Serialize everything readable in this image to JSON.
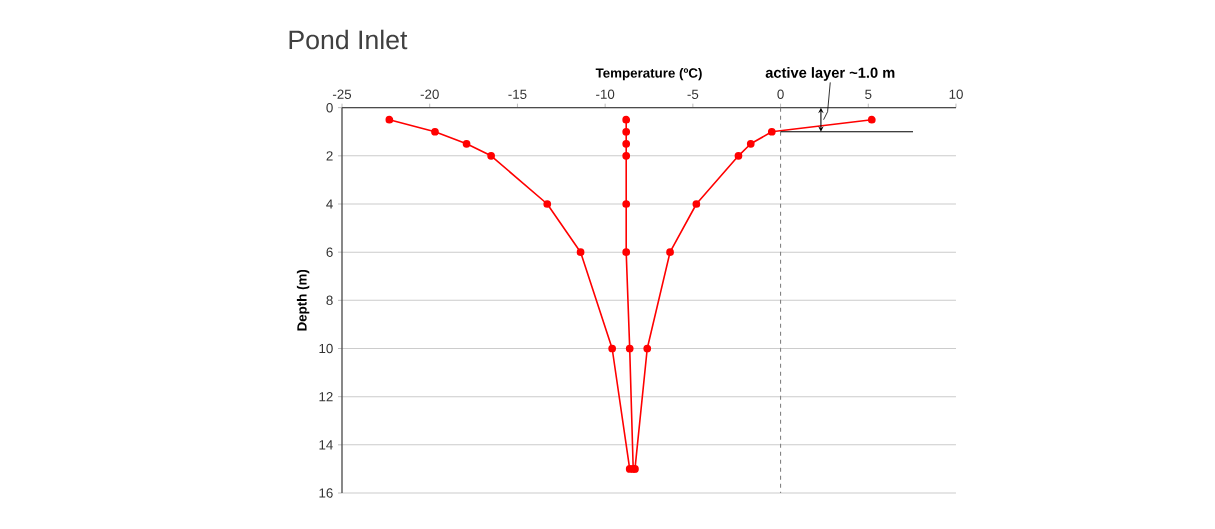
{
  "chart_data": {
    "type": "line",
    "title": "Pond Inlet",
    "xlabel": "Temperature (ºC)",
    "ylabel": "Depth (m)",
    "series": [
      {
        "color": "#ff0000",
        "x": [
          -22.3,
          -19.7,
          -17.9,
          -16.5,
          -13.3,
          -11.4,
          -9.6,
          -8.6
        ],
        "values": [
          0.5,
          1,
          1.5,
          2,
          4,
          6,
          10,
          15
        ]
      },
      {
        "color": "#ff0000",
        "x": [
          -8.8,
          -8.8,
          -8.8,
          -8.8,
          -8.8,
          -8.8,
          -8.6,
          -8.4
        ],
        "values": [
          0.5,
          1,
          1.5,
          2,
          4,
          6,
          10,
          15
        ]
      },
      {
        "color": "#ff0000",
        "x": [
          5.2,
          -0.5,
          -1.7,
          -2.4,
          -4.8,
          -6.3,
          -7.6,
          -8.3
        ],
        "values": [
          0.5,
          1,
          1.5,
          2,
          4,
          6,
          10,
          15
        ]
      }
    ],
    "xlim": [
      -25,
      10
    ],
    "xticks": [
      -25,
      -20,
      -15,
      -10,
      -5,
      0,
      5,
      10
    ],
    "ylim": [
      16,
      0
    ],
    "yticks": [
      0,
      2,
      4,
      6,
      8,
      10,
      12,
      14,
      16
    ],
    "grid": "y",
    "marker": "circle",
    "line_style": "solid",
    "ref_lines": [
      {
        "axis": "x",
        "value": 0,
        "color": "#808080",
        "line_style": "dashed"
      },
      {
        "axis": "y",
        "value": 1,
        "color": "#000000",
        "line_style": "solid"
      }
    ],
    "annotations": [
      "active layer ~1.0 m"
    ]
  }
}
